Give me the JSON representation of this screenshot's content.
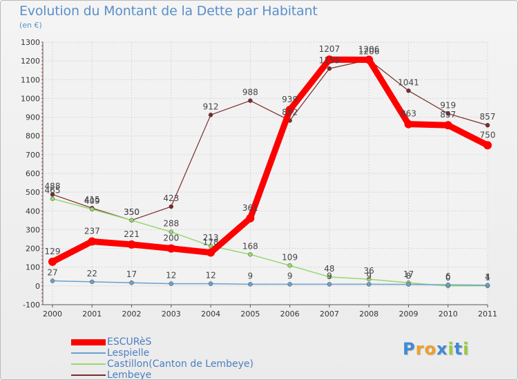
{
  "title": "Evolution du Montant de la Dette par Habitant",
  "subtitle": "(en €)",
  "logo": {
    "letters": [
      "P",
      "r",
      "o",
      "x",
      "i",
      "t",
      "i"
    ],
    "colors": [
      "#3f8ad6",
      "#f0a025",
      "#f0a025",
      "#3f8ad6",
      "#9acc3c",
      "#3f8ad6",
      "#9acc3c"
    ]
  },
  "chart_data": {
    "type": "line",
    "x": [
      "2000",
      "2001",
      "2002",
      "2003",
      "2004",
      "2005",
      "2006",
      "2007",
      "2008",
      "2009",
      "2010",
      "2011"
    ],
    "ylim": [
      -100,
      1300
    ],
    "yticks": [
      -100,
      0,
      100,
      200,
      300,
      400,
      500,
      600,
      700,
      800,
      900,
      1000,
      1100,
      1200,
      1300
    ],
    "grid": true,
    "legend_position": "bottom-left",
    "series": [
      {
        "name": "ESCURèS",
        "color": "#ff0000",
        "width": 9,
        "marker": 6,
        "values": [
          129,
          237,
          221,
          200,
          178,
          361,
          939,
          1207,
          1206,
          863,
          857,
          750
        ]
      },
      {
        "name": "Lespielle",
        "color": "#6aa0cf",
        "width": 1.5,
        "marker": 3,
        "values": [
          27,
          22,
          17,
          12,
          12,
          9,
          9,
          9,
          9,
          8,
          6,
          4
        ]
      },
      {
        "name": "Castillon(Canton de Lembeye)",
        "color": "#98d670",
        "width": 1.5,
        "marker": 3,
        "values": [
          465,
          409,
          350,
          288,
          213,
          168,
          109,
          48,
          36,
          17,
          0,
          1
        ]
      },
      {
        "name": "Lembeye",
        "color": "#7a2a2a",
        "width": 1.2,
        "marker": 3,
        "values": [
          488,
          415,
          350,
          423,
          912,
          988,
          882,
          1159,
          1206,
          1041,
          919,
          857
        ]
      }
    ]
  }
}
